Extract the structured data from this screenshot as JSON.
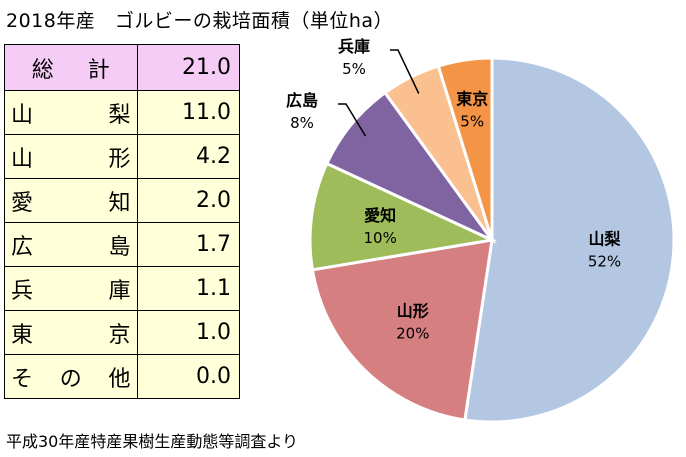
{
  "title": "2018年産　ゴルビーの栽培面積（単位ha）",
  "source": "平成30年産特産果樹生産動態等調査より",
  "table": {
    "total": {
      "label": [
        "総",
        "計"
      ],
      "value": "21.0"
    },
    "rows": [
      {
        "label": [
          "山",
          "梨"
        ],
        "value": "11.0"
      },
      {
        "label": [
          "山",
          "形"
        ],
        "value": "4.2"
      },
      {
        "label": [
          "愛",
          "知"
        ],
        "value": "2.0"
      },
      {
        "label": [
          "広",
          "島"
        ],
        "value": "1.7"
      },
      {
        "label": [
          "兵",
          "庫"
        ],
        "value": "1.1"
      },
      {
        "label": [
          "東",
          "京"
        ],
        "value": "1.0"
      },
      {
        "label": [
          "そ",
          "の",
          "他"
        ],
        "value": "0.0"
      }
    ]
  },
  "chart_data": {
    "type": "pie",
    "slices": [
      {
        "name": "山梨",
        "value": 11.0,
        "label": "52%",
        "color": "#b3c7e3"
      },
      {
        "name": "山形",
        "value": 4.2,
        "label": "20%",
        "color": "#d57f80"
      },
      {
        "name": "愛知",
        "value": 2.0,
        "label": "10%",
        "color": "#9ebd5a"
      },
      {
        "name": "広島",
        "value": 1.7,
        "label": "8%",
        "color": "#8064a2"
      },
      {
        "name": "兵庫",
        "value": 1.1,
        "label": "5%",
        "color": "#fac090"
      },
      {
        "name": "東京",
        "value": 1.0,
        "label": "5%",
        "color": "#f49446"
      }
    ],
    "start": "12 o'clock",
    "direction": "clockwise"
  }
}
